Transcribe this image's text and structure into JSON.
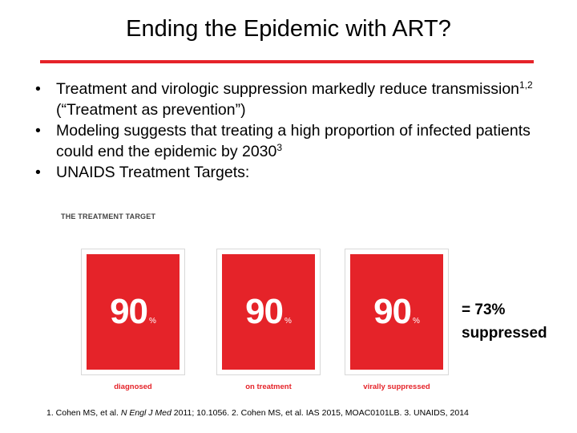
{
  "slide": {
    "title": "Ending the Epidemic with ART?",
    "accent_color": "#e52329",
    "box_color": "#e52329",
    "frame_color": "#d8d8d8"
  },
  "bullets": [
    {
      "marker": "•",
      "text_a": "Treatment and virologic suppression markedly reduce transmission",
      "sup": "1,2",
      "text_b": " (“Treatment as prevention”)"
    },
    {
      "marker": "•",
      "text_a": "Modeling suggests that treating a high proportion of infected patients could end the epidemic by 2030",
      "sup": "3",
      "text_b": ""
    },
    {
      "marker": "•",
      "text_a": "UNAIDS Treatment Targets:",
      "sup": "",
      "text_b": ""
    }
  ],
  "treatment_target": {
    "heading": "THE TREATMENT TARGET",
    "boxes": [
      {
        "value": "90",
        "unit": "%",
        "caption": "diagnosed"
      },
      {
        "value": "90",
        "unit": "%",
        "caption": "on treatment"
      },
      {
        "value": "90",
        "unit": "%",
        "caption": "virally suppressed"
      }
    ],
    "result_line1": "= 73%",
    "result_line2": "suppressed"
  },
  "references": {
    "r1_a": "1. Cohen MS, et al. ",
    "r1_journal": "N Engl J Med",
    "r1_b": " 2011; 10.1056. 2. Cohen MS, et al. IAS 2015, MOAC0101LB.  3. UNAIDS, 2014"
  }
}
